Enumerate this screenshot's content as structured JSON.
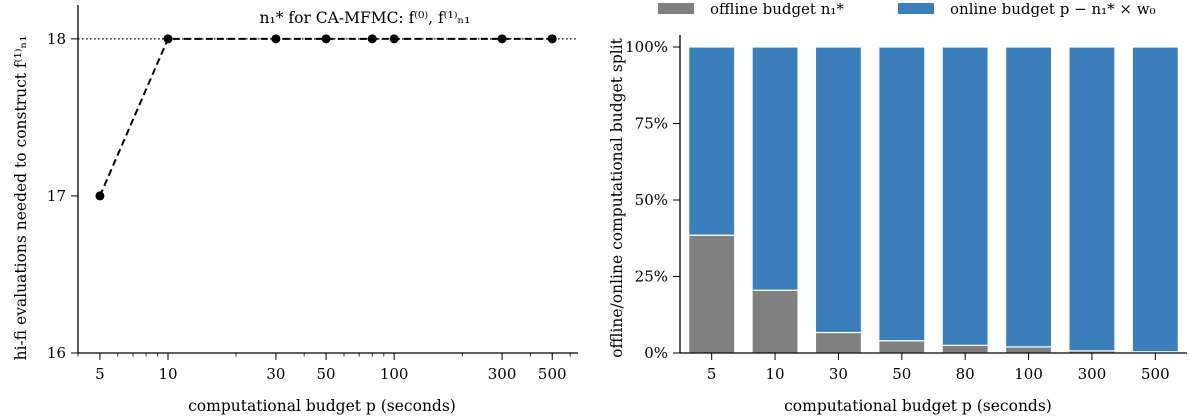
{
  "chart_data": [
    {
      "type": "line",
      "title": "n₁* for CA-MFMC: f⁽⁰⁾, f⁽¹⁾ₙ₁",
      "xlabel": "computational budget p (seconds)",
      "ylabel": "hi-fi evaluations needed to construct f⁽¹⁾ₙ₁",
      "xscale": "log",
      "xlim": [
        4,
        650
      ],
      "ylim": [
        16,
        18.05
      ],
      "xticks": [
        5,
        10,
        30,
        50,
        100,
        300,
        500
      ],
      "xtick_labels": [
        "5",
        "10",
        "30",
        "50",
        "100",
        "300",
        "500"
      ],
      "yticks": [
        16,
        17,
        18
      ],
      "ytick_labels": [
        "16",
        "17",
        "18"
      ],
      "reference_line": 18,
      "series": [
        {
          "x": [
            5,
            10,
            30,
            50,
            80,
            100,
            300,
            500
          ],
          "y": [
            17,
            18,
            18,
            18,
            18,
            18,
            18,
            18
          ],
          "color": "#000000",
          "style": "dashed",
          "marker": "circle"
        }
      ],
      "grid": false
    },
    {
      "type": "bar",
      "stacked": true,
      "xlabel": "computational budget p (seconds)",
      "ylabel": "offline/online computational budget split",
      "categories": [
        "5",
        "10",
        "30",
        "50",
        "80",
        "100",
        "300",
        "500"
      ],
      "yticks": [
        0,
        0.25,
        0.5,
        0.75,
        1.0
      ],
      "ytick_labels": [
        "0%",
        "25%",
        "50%",
        "75%",
        "100%"
      ],
      "ylim": [
        0,
        1
      ],
      "series": [
        {
          "name": "offline budget n₁*",
          "values": [
            0.385,
            0.205,
            0.067,
            0.04,
            0.025,
            0.02,
            0.007,
            0.004
          ],
          "color": "#808080"
        },
        {
          "name": "online budget p − n₁* × w₀",
          "values": [
            0.615,
            0.795,
            0.933,
            0.96,
            0.975,
            0.98,
            0.993,
            0.996
          ],
          "color": "#3a7ebb"
        }
      ],
      "legend": "top",
      "grid": false
    }
  ]
}
